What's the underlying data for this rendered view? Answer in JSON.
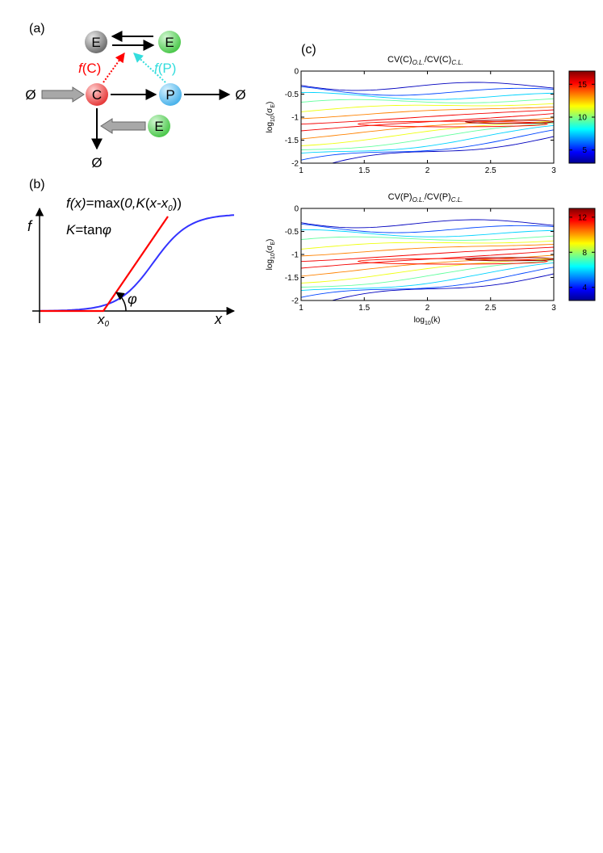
{
  "panels": {
    "a": {
      "label": "(a)",
      "nodes": {
        "E_top_left": "E",
        "E_top_right": "E",
        "C": "C",
        "P": "P",
        "E_bottom": "E"
      },
      "null_left": "Ø",
      "null_right": "Ø",
      "null_bottom": "Ø",
      "fC_f": "f",
      "fC_arg": "(C)",
      "fP_f": "f",
      "fP_arg": "(P)",
      "colors": {
        "fC": "#ff0000",
        "fP": "#33dddd",
        "node_E_gray": "#7f7f7f",
        "node_E_green": "#5fd65f",
        "node_C": "#ee4444",
        "node_P": "#55bbee",
        "inflow_arrow": "#a0a0a0"
      }
    },
    "b": {
      "label": "(b)",
      "formula": {
        "f": "f",
        "x1": "(x)",
        "eq": "=max(",
        "zero": "0",
        "comma": ",",
        "K": "K",
        "paren": "(",
        "x2": "x",
        "minus": "-x",
        "sub0": "0",
        "close": "))"
      },
      "K_def": {
        "K": "K",
        "eq": "=tan",
        "phi": "φ"
      },
      "axis_y": "f",
      "axis_x": "x",
      "x0_main": "x",
      "x0_sub": "0",
      "angle": "φ",
      "colors": {
        "sigmoid": "#3333ff",
        "linear": "#ff0000"
      }
    },
    "c": {
      "label": "(c)",
      "colors": {
        "colormap": [
          "#00008f",
          "#0000ff",
          "#00ffff",
          "#ffff00",
          "#ff0000",
          "#800000"
        ]
      }
    }
  },
  "chart_data": [
    {
      "type": "contour",
      "title_main": "CV(C)",
      "title_sub1": "O.L.",
      "title_mid": "/CV(C)",
      "title_sub2": "C.L.",
      "xlabel": "",
      "ylabel_main": "log",
      "ylabel_sub": "10",
      "ylabel_arg": "(σ",
      "ylabel_arg_sub": "E",
      "ylabel_close": ")",
      "xlim": [
        1,
        3
      ],
      "ylim": [
        -2,
        0
      ],
      "xticks": [
        "1",
        "1.5",
        "2",
        "2.5",
        "3"
      ],
      "yticks": [
        "0",
        "-0.5",
        "-1",
        "-1.5",
        "-2"
      ],
      "colorbar_ticks": [
        "15",
        "10",
        "5"
      ],
      "colorbar_range": [
        3,
        17
      ]
    },
    {
      "type": "contour",
      "title_main": "CV(P)",
      "title_sub1": "O.L.",
      "title_mid": "/CV(P)",
      "title_sub2": "C.L.",
      "xlabel_main": "log",
      "xlabel_sub": "10",
      "xlabel_arg": "(k)",
      "ylabel_main": "log",
      "ylabel_sub": "10",
      "ylabel_arg": "(σ",
      "ylabel_arg_sub": "E",
      "ylabel_close": ")",
      "xlim": [
        1,
        3
      ],
      "ylim": [
        -2,
        0
      ],
      "xticks": [
        "1",
        "1.5",
        "2",
        "2.5",
        "3"
      ],
      "yticks": [
        "0",
        "-0.5",
        "-1",
        "-1.5",
        "-2"
      ],
      "colorbar_ticks": [
        "12",
        "8",
        "4"
      ],
      "colorbar_range": [
        2.5,
        13
      ]
    }
  ]
}
